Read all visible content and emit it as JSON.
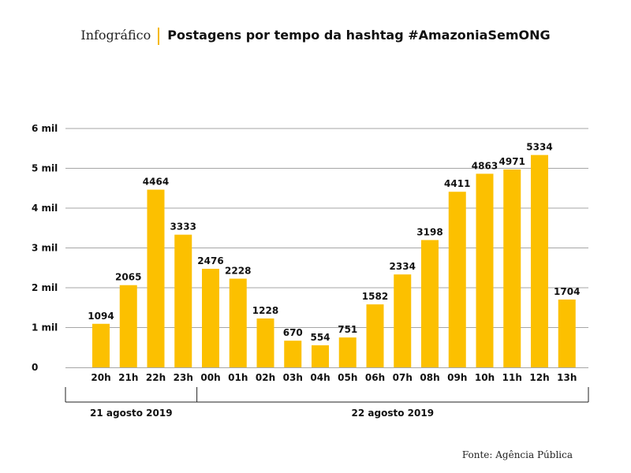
{
  "header": {
    "kicker": "Infográfico",
    "title": "Postagens por tempo da hashtag #AmazoniaSemONG"
  },
  "source": "Fonte: Agência Pública",
  "colors": {
    "bar": "#fcc000",
    "grid": "#a6a6a6",
    "accent": "#f5b800"
  },
  "chart_data": {
    "type": "bar",
    "title": "Postagens por tempo da hashtag #AmazoniaSemONG",
    "categories": [
      "20h",
      "21h",
      "22h",
      "23h",
      "00h",
      "01h",
      "02h",
      "03h",
      "04h",
      "05h",
      "06h",
      "07h",
      "08h",
      "09h",
      "10h",
      "11h",
      "12h",
      "13h"
    ],
    "values": [
      1094,
      2065,
      4464,
      3333,
      2476,
      2228,
      1228,
      670,
      554,
      751,
      1582,
      2334,
      3198,
      4411,
      4863,
      4971,
      5334,
      1704
    ],
    "ylim": [
      0,
      6000
    ],
    "yticks": [
      {
        "value": 0,
        "label": "0"
      },
      {
        "value": 1000,
        "label": "1 mil"
      },
      {
        "value": 2000,
        "label": "2 mil"
      },
      {
        "value": 3000,
        "label": "3 mil"
      },
      {
        "value": 4000,
        "label": "4 mil"
      },
      {
        "value": 5000,
        "label": "5 mil"
      },
      {
        "value": 6000,
        "label": "6 mil"
      }
    ],
    "groups": [
      {
        "label": "21 agosto 2019",
        "from": 0,
        "to": 3
      },
      {
        "label": "22 agosto 2019",
        "from": 4,
        "to": 17
      }
    ],
    "grid": true,
    "legend": false
  }
}
